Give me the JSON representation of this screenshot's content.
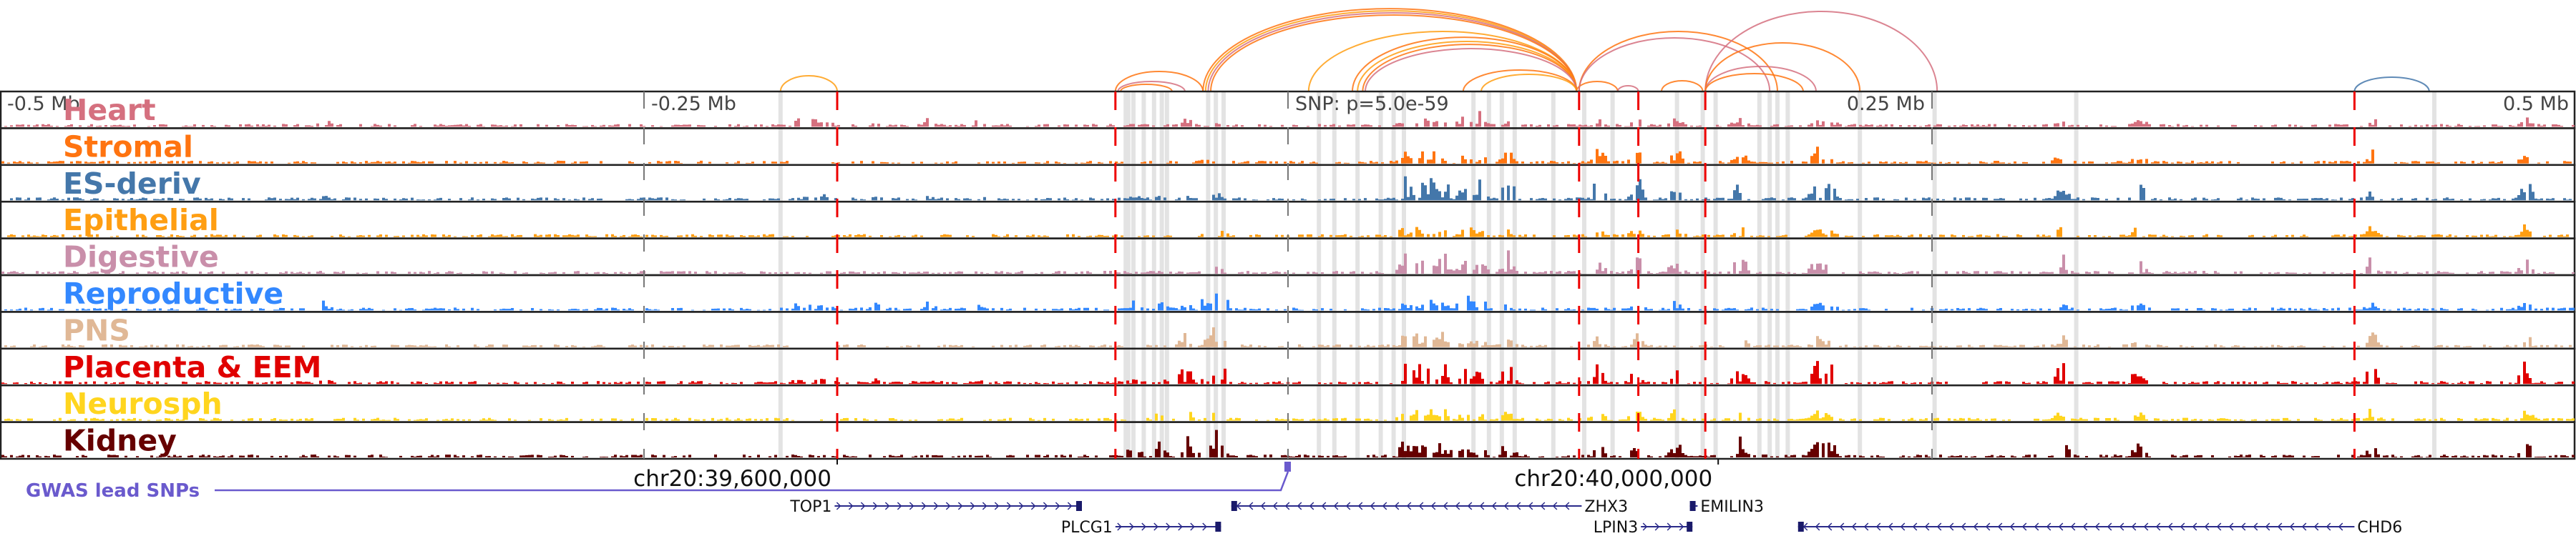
{
  "axis": {
    "ticks": [
      {
        "label": "-0.5 Mb",
        "kb": -500
      },
      {
        "label": "-0.25 Mb",
        "kb": -250
      },
      {
        "label": "0.25 Mb",
        "kb": 250
      },
      {
        "label": "0.5 Mb",
        "kb": 500
      }
    ],
    "snp_label": "SNP: p=5.0e-59",
    "coords": [
      {
        "label": "chr20:39,600,000",
        "kb": -175
      },
      {
        "label": "chr20:40,000,000",
        "kb": 167
      }
    ]
  },
  "tracks": [
    {
      "label": "Heart",
      "color": "#d5707f"
    },
    {
      "label": "Stromal",
      "color": "#ff7410"
    },
    {
      "label": "ES-deriv",
      "color": "#4477aa"
    },
    {
      "label": "Epithelial",
      "color": "#ff9e12"
    },
    {
      "label": "Digestive",
      "color": "#c98faa"
    },
    {
      "label": "Reproductive",
      "color": "#3388ff"
    },
    {
      "label": "PNS",
      "color": "#e0b896"
    },
    {
      "label": "Placenta & EEM",
      "color": "#e00000"
    },
    {
      "label": "Neurosph",
      "color": "#ffd51e"
    },
    {
      "label": "Kidney",
      "color": "#660000"
    }
  ],
  "red_lines_kb": [
    -175,
    -67,
    113,
    136,
    162,
    414
  ],
  "highlight_kb": [
    -197,
    -63,
    -62,
    -60,
    -56,
    -52,
    -49,
    -47,
    -31,
    -28,
    -25,
    12,
    18,
    27,
    36,
    41,
    45,
    72,
    78,
    83,
    88,
    103,
    115,
    126,
    151,
    161,
    166,
    183,
    187,
    190,
    194,
    222,
    251,
    306,
    445
  ],
  "arcs": [
    {
      "from": -197,
      "to": -175,
      "h": 22,
      "color": "#ff9e12"
    },
    {
      "from": -67,
      "to": -33,
      "h": 28,
      "color": "#ff7410"
    },
    {
      "from": -66,
      "to": -40,
      "h": 14,
      "color": "#d5707f"
    },
    {
      "from": -65,
      "to": -45,
      "h": 10,
      "color": "#ff7410"
    },
    {
      "from": -33,
      "to": 112,
      "h": 116,
      "color": "#ff7410"
    },
    {
      "from": -32,
      "to": 112,
      "h": 113,
      "color": "#ff9e12"
    },
    {
      "from": -31,
      "to": 112,
      "h": 110,
      "color": "#d5707f"
    },
    {
      "from": -30,
      "to": 112,
      "h": 107,
      "color": "#ff7410"
    },
    {
      "from": 8,
      "to": 112,
      "h": 84,
      "color": "#ff9e12"
    },
    {
      "from": 25,
      "to": 112,
      "h": 76,
      "color": "#ff7410"
    },
    {
      "from": 27,
      "to": 112,
      "h": 70,
      "color": "#ff9e12"
    },
    {
      "from": 29,
      "to": 112,
      "h": 66,
      "color": "#ff7410"
    },
    {
      "from": 30,
      "to": 112,
      "h": 60,
      "color": "#d5707f"
    },
    {
      "from": 68,
      "to": 112,
      "h": 30,
      "color": "#ff7410"
    },
    {
      "from": 75,
      "to": 112,
      "h": 24,
      "color": "#ff9e12"
    },
    {
      "from": 112,
      "to": 128,
      "h": 14,
      "color": "#ff7410"
    },
    {
      "from": 128,
      "to": 136,
      "h": 8,
      "color": "#d5707f"
    },
    {
      "from": 113,
      "to": 190,
      "h": 84,
      "color": "#ff7410"
    },
    {
      "from": 113,
      "to": 187,
      "h": 75,
      "color": "#d5707f"
    },
    {
      "from": 145,
      "to": 161,
      "h": 15,
      "color": "#ff7410"
    },
    {
      "from": 162,
      "to": 252,
      "h": 112,
      "color": "#d5707f"
    },
    {
      "from": 162,
      "to": 222,
      "h": 68,
      "color": "#ff7410"
    },
    {
      "from": 162,
      "to": 205,
      "h": 35,
      "color": "#d5707f"
    },
    {
      "from": 162,
      "to": 200,
      "h": 25,
      "color": "#ff7410"
    },
    {
      "from": 414,
      "to": 443,
      "h": 20,
      "color": "#4477aa"
    }
  ],
  "gwas": {
    "label": "GWAS lead SNPs",
    "kb": 0,
    "color": "#6a5acd"
  },
  "genes": [
    {
      "name": "TOP1",
      "start": -176,
      "end": -80,
      "strand": "+",
      "row": 0,
      "label_side": "left"
    },
    {
      "name": "PLCG1",
      "start": -67,
      "end": -26,
      "strand": "+",
      "row": 1,
      "label_side": "left"
    },
    {
      "name": "ZHX3",
      "start": -22,
      "end": 114,
      "strand": "-",
      "row": 0,
      "label_side": "right"
    },
    {
      "name": "LPIN3",
      "start": 137,
      "end": 157,
      "strand": "+",
      "row": 1,
      "label_side": "left"
    },
    {
      "name": "EMILIN3",
      "start": 156,
      "end": 159,
      "strand": "-",
      "row": 0,
      "label_side": "right"
    },
    {
      "name": "CHD6",
      "start": 198,
      "end": 414,
      "strand": "-",
      "row": 1,
      "label_side": "right"
    }
  ]
}
